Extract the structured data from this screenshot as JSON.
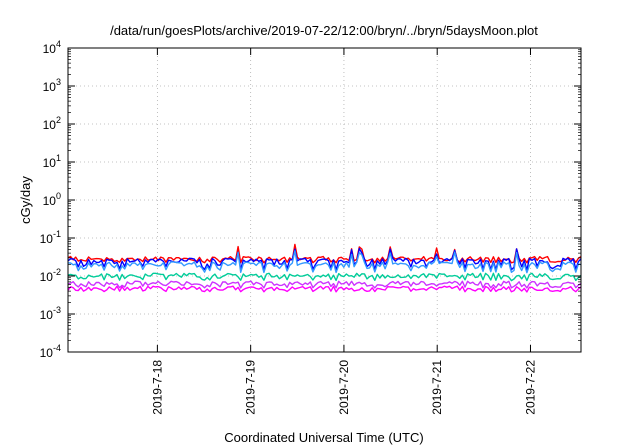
{
  "chart_data": {
    "type": "line",
    "title": "/data/run/goesPlots/archive/2019-07-22/12:00/bryn/../bryn/5daysMoon.plot",
    "xlabel": "Coordinated Universal Time (UTC)",
    "ylabel": "cGy/day",
    "y_scale": "log",
    "ylim": [
      0.0001,
      10000
    ],
    "y_ticks": [
      {
        "value": 0.0001,
        "base": "10",
        "exp": "-4"
      },
      {
        "value": 0.001,
        "base": "10",
        "exp": "-3"
      },
      {
        "value": 0.01,
        "base": "10",
        "exp": "-2"
      },
      {
        "value": 0.1,
        "base": "10",
        "exp": "-1"
      },
      {
        "value": 1,
        "base": "10",
        "exp": "0"
      },
      {
        "value": 10,
        "base": "10",
        "exp": "1"
      },
      {
        "value": 100,
        "base": "10",
        "exp": "2"
      },
      {
        "value": 1000,
        "base": "10",
        "exp": "3"
      },
      {
        "value": 10000,
        "base": "10",
        "exp": "4"
      }
    ],
    "xlim": [
      "2019-07-17T01:00",
      "2019-07-22T13:00"
    ],
    "x_ticks": [
      {
        "value": "2019-07-18T00:00",
        "label": "2019-7-18"
      },
      {
        "value": "2019-07-19T00:00",
        "label": "2019-7-19"
      },
      {
        "value": "2019-07-20T00:00",
        "label": "2019-7-20"
      },
      {
        "value": "2019-07-21T00:00",
        "label": "2019-7-21"
      },
      {
        "value": "2019-07-22T00:00",
        "label": "2019-7-22"
      }
    ],
    "grid": true,
    "grid_style": "dotted",
    "series": [
      {
        "color": "#ff0000",
        "base": 0.029,
        "dip_to": 0.022
      },
      {
        "color": "#0000ff",
        "base": 0.026,
        "dip_to": 0.014
      },
      {
        "color": "#3399ff",
        "base": 0.021,
        "dip_to": 0.012
      },
      {
        "color": "#00cc99",
        "base": 0.0105,
        "dip_to": 0.0075
      },
      {
        "color": "#cc33ff",
        "base": 0.0065,
        "dip_to": 0.0048
      },
      {
        "color": "#ff00ff",
        "base": 0.0048,
        "dip_to": 0.0038
      }
    ]
  }
}
